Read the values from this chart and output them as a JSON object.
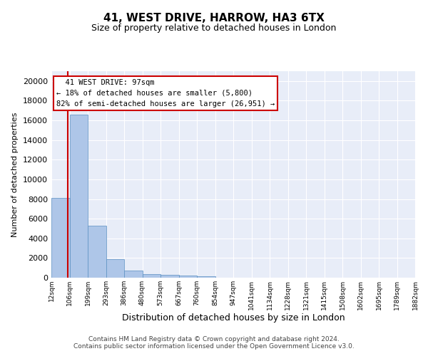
{
  "title": "41, WEST DRIVE, HARROW, HA3 6TX",
  "subtitle": "Size of property relative to detached houses in London",
  "xlabel": "Distribution of detached houses by size in London",
  "ylabel": "Number of detached properties",
  "bin_labels": [
    "12sqm",
    "106sqm",
    "199sqm",
    "293sqm",
    "386sqm",
    "480sqm",
    "573sqm",
    "667sqm",
    "760sqm",
    "854sqm",
    "947sqm",
    "1041sqm",
    "1134sqm",
    "1228sqm",
    "1321sqm",
    "1415sqm",
    "1508sqm",
    "1602sqm",
    "1695sqm",
    "1789sqm",
    "1882sqm"
  ],
  "bar_values": [
    8100,
    16600,
    5300,
    1850,
    700,
    380,
    290,
    210,
    160,
    0,
    0,
    0,
    0,
    0,
    0,
    0,
    0,
    0,
    0,
    0
  ],
  "bar_color": "#aec6e8",
  "bar_edge_color": "#5a8fc2",
  "vline_x": 0.904,
  "property_label": "41 WEST DRIVE: 97sqm",
  "smaller_pct": 18,
  "smaller_count": "5,800",
  "larger_pct": 82,
  "larger_count": "26,951",
  "vline_color": "#cc0000",
  "annotation_box_edgecolor": "#cc0000",
  "ylim": [
    0,
    21000
  ],
  "yticks": [
    0,
    2000,
    4000,
    6000,
    8000,
    10000,
    12000,
    14000,
    16000,
    18000,
    20000
  ],
  "footnote1": "Contains HM Land Registry data © Crown copyright and database right 2024.",
  "footnote2": "Contains public sector information licensed under the Open Government Licence v3.0.",
  "background_color": "#e8edf8",
  "grid_color": "#ffffff",
  "title_fontsize": 11,
  "subtitle_fontsize": 9,
  "ylabel_fontsize": 8,
  "xlabel_fontsize": 9,
  "ytick_fontsize": 8,
  "xtick_fontsize": 6.5
}
